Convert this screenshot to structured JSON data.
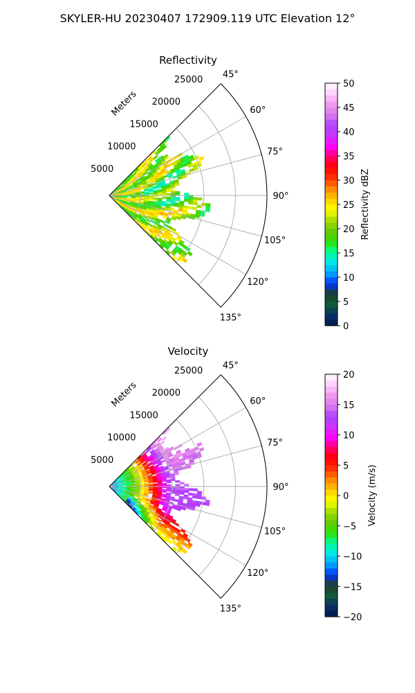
{
  "figure": {
    "title": "SKYLER-HU  20230407  172909.119 UTC Elevation 12°"
  },
  "colors": {
    "reflectivity_stops": [
      "#001a4d",
      "#0a2d66",
      "#0f5a3a",
      "#1f3f2a",
      "#0033ff",
      "#00a6ff",
      "#00e6e6",
      "#00ff99",
      "#33dd00",
      "#66cc00",
      "#aadd00",
      "#ffff00",
      "#ffcc00",
      "#ff8800",
      "#ff3300",
      "#ff0000",
      "#ff0066",
      "#ff00ff",
      "#cc33ff",
      "#aa44ff",
      "#dd77ee",
      "#ee99ee",
      "#ffccff",
      "#ffffff"
    ],
    "velocity_stops": [
      "#001a4d",
      "#0a2d66",
      "#0f5a3a",
      "#1f3f2a",
      "#0033ff",
      "#00a6ff",
      "#00e6e6",
      "#00ff99",
      "#33dd00",
      "#66cc00",
      "#aadd00",
      "#ffff00",
      "#ffcc00",
      "#ff8800",
      "#ff3300",
      "#ff0000",
      "#ff0066",
      "#ff00ff",
      "#cc33ff",
      "#aa44ff",
      "#dd77ee",
      "#ee99ee",
      "#ffccff",
      "#ffffff"
    ]
  },
  "chart_data": [
    {
      "type": "heatmap",
      "subtype": "polar-sector",
      "title": "Reflectivity",
      "radial_label": "Meters",
      "radial_ticks": [
        5000,
        10000,
        15000,
        20000,
        25000
      ],
      "radial_max": 25000,
      "angle_ticks": [
        "45°",
        "60°",
        "75°",
        "90°",
        "105°",
        "120°",
        "135°"
      ],
      "angle_range_deg": [
        45,
        135
      ],
      "grid": true,
      "colorbar": {
        "label": "Reflectivity dBZ",
        "range": [
          0,
          50
        ],
        "ticks": [
          "0",
          "5",
          "10",
          "15",
          "20",
          "25",
          "30",
          "35",
          "40",
          "45",
          "50"
        ]
      },
      "field_summary": {
        "data_extent_m": [
          0,
          16000
        ],
        "dominant_range_dbz": [
          15,
          28
        ]
      }
    },
    {
      "type": "heatmap",
      "subtype": "polar-sector",
      "title": "Velocity",
      "radial_label": "Meters",
      "radial_ticks": [
        5000,
        10000,
        15000,
        20000,
        25000
      ],
      "radial_max": 25000,
      "angle_ticks": [
        "45°",
        "60°",
        "75°",
        "90°",
        "105°",
        "120°",
        "135°"
      ],
      "angle_range_deg": [
        45,
        135
      ],
      "grid": true,
      "colorbar": {
        "label": "Velocity (m/s)",
        "range": [
          -20,
          20
        ],
        "ticks": [
          "−20",
          "−15",
          "−10",
          "−5",
          "0",
          "5",
          "10",
          "15",
          "20"
        ]
      },
      "field_summary": {
        "data_extent_m": [
          0,
          16000
        ],
        "near_range_ms": [
          -12,
          -5
        ],
        "far_range_ms": [
          10,
          17
        ]
      }
    }
  ]
}
